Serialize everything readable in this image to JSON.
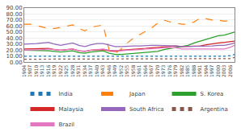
{
  "chart_data": {
    "type": "line",
    "x": [
      1904,
      1907,
      1910,
      1913,
      1916,
      1919,
      1922,
      1925,
      1928,
      1931,
      1934,
      1937,
      1940,
      1943,
      1946,
      1949,
      1952,
      1955,
      1958,
      1961,
      1964,
      1967,
      1970,
      1973,
      1976,
      1979,
      1982,
      1985,
      1988,
      1991,
      1994,
      1997,
      2000,
      2003,
      2006,
      2008
    ],
    "series": [
      {
        "name": "India",
        "line_style": "dotted",
        "values": [
          10,
          10,
          10,
          10,
          10,
          9,
          9,
          10,
          10,
          9,
          9,
          10,
          10,
          10,
          9,
          9,
          9,
          9,
          9,
          9,
          9,
          9,
          9,
          9,
          9,
          9,
          9,
          9,
          9,
          10,
          10,
          10,
          10,
          10,
          11,
          13
        ]
      },
      {
        "name": "Japan",
        "line_style": "dashed",
        "values": [
          63,
          63,
          61,
          58,
          56,
          56,
          58,
          60,
          62,
          56,
          52,
          58,
          60,
          62,
          20,
          15,
          22,
          32,
          40,
          46,
          52,
          57,
          65,
          70,
          67,
          65,
          63,
          63,
          67,
          73,
          72,
          70,
          70,
          68,
          70,
          71
        ]
      },
      {
        "name": "S. Korea",
        "line_style": "solid",
        "values": [
          20,
          20,
          20,
          20,
          19,
          18,
          17,
          18,
          19,
          16,
          15,
          17,
          18,
          19,
          15,
          13,
          13,
          14,
          15,
          15,
          16,
          17,
          18,
          21,
          23,
          25,
          27,
          28,
          32,
          35,
          38,
          42,
          44,
          45,
          48,
          50
        ]
      },
      {
        "name": "Malaysia",
        "line_style": "solid",
        "values": [
          22,
          22,
          22,
          23,
          23,
          21,
          20,
          21,
          22,
          19,
          18,
          20,
          21,
          21,
          19,
          18,
          20,
          21,
          21,
          22,
          23,
          24,
          25,
          26,
          26,
          27,
          26,
          26,
          27,
          27,
          29,
          31,
          32,
          33,
          34,
          35
        ]
      },
      {
        "name": "South Africa",
        "line_style": "solid",
        "values": [
          30,
          30,
          31,
          32,
          33,
          30,
          28,
          30,
          32,
          28,
          26,
          29,
          31,
          31,
          28,
          26,
          26,
          27,
          27,
          27,
          28,
          28,
          28,
          28,
          27,
          27,
          26,
          26,
          26,
          26,
          26,
          27,
          28,
          28,
          30,
          32
        ]
      },
      {
        "name": "Argentina",
        "line_style": "dotted",
        "values": [
          5,
          5,
          5,
          5,
          5,
          5,
          5,
          5,
          5,
          5,
          5,
          5,
          5,
          5,
          5,
          5,
          5,
          5,
          5,
          5,
          5,
          5,
          5,
          5,
          5,
          5,
          5,
          5,
          5,
          5,
          5,
          5,
          5,
          5,
          6,
          8
        ]
      },
      {
        "name": "Brazil",
        "line_style": "solid",
        "values": [
          20,
          20,
          20,
          21,
          22,
          21,
          20,
          21,
          22,
          19,
          18,
          20,
          21,
          22,
          20,
          19,
          19,
          20,
          20,
          21,
          22,
          22,
          23,
          24,
          24,
          24,
          22,
          22,
          22,
          22,
          22,
          22,
          22,
          22,
          25,
          28
        ]
      }
    ],
    "xlim": [
      1904,
      2008
    ],
    "xticks": [
      1904,
      1907,
      1910,
      1913,
      1916,
      1919,
      1922,
      1925,
      1928,
      1931,
      1934,
      1937,
      1940,
      1943,
      1946,
      1949,
      1952,
      1955,
      1958,
      1961,
      1964,
      1967,
      1970,
      1973,
      1976,
      1979,
      1982,
      1985,
      1988,
      1991,
      1994,
      1997,
      2000,
      2003,
      2006
    ],
    "ylim": [
      0,
      90
    ],
    "yticks": [
      {
        "value": 0,
        "label": "0.00"
      },
      {
        "value": 10,
        "label": "10.00"
      },
      {
        "value": 20,
        "label": "20.00"
      },
      {
        "value": 30,
        "label": "30.00"
      },
      {
        "value": 40,
        "label": "40.00"
      },
      {
        "value": 50,
        "label": "50.00"
      },
      {
        "value": 60,
        "label": "60.00"
      },
      {
        "value": 70,
        "label": "70.00"
      },
      {
        "value": 80,
        "label": "80.00"
      },
      {
        "value": 90,
        "label": "90.00"
      }
    ],
    "grid": "y",
    "legend": "bottom"
  }
}
